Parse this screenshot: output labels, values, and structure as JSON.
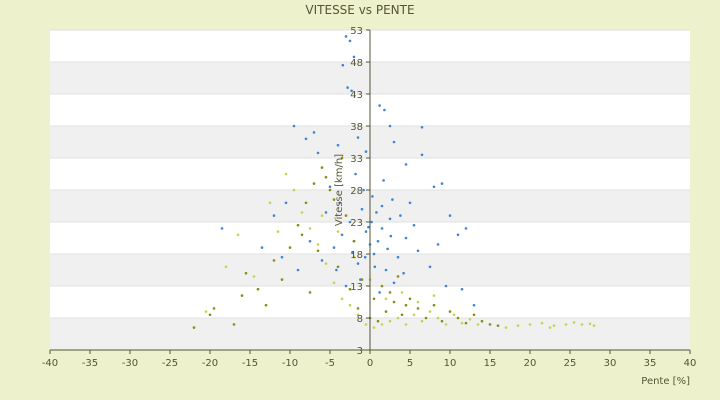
{
  "chart_data": {
    "type": "scatter",
    "title": "VITESSE vs PENTE",
    "xlabel": "Pente [%]",
    "ylabel": "Vitesse [km/h]",
    "xlim": [
      -40,
      40
    ],
    "ylim": [
      3,
      53
    ],
    "x_ticks": [
      "-40",
      "-35",
      "-30",
      "-25",
      "-20",
      "-15",
      "-10",
      "-5",
      "0",
      "5",
      "10",
      "15",
      "20",
      "25",
      "30",
      "35",
      "40"
    ],
    "y_ticks": [
      "3",
      "8",
      "13",
      "18",
      "23",
      "28",
      "33",
      "38",
      "43",
      "48",
      "53"
    ],
    "grid": true,
    "series": [
      {
        "name": "",
        "color": "#3a86d4",
        "points": [
          [
            -3.0,
            52.0
          ],
          [
            -2.5,
            51.3
          ],
          [
            -2.0,
            48.8
          ],
          [
            -3.4,
            47.5
          ],
          [
            -2.8,
            44.0
          ],
          [
            -2.3,
            43.5
          ],
          [
            1.2,
            41.2
          ],
          [
            1.8,
            40.5
          ],
          [
            2.5,
            38.0
          ],
          [
            -9.5,
            38.0
          ],
          [
            -7.0,
            37.0
          ],
          [
            -8.0,
            36.0
          ],
          [
            6.5,
            37.8
          ],
          [
            -1.5,
            36.2
          ],
          [
            -4.0,
            35.0
          ],
          [
            3.0,
            35.5
          ],
          [
            -6.5,
            33.8
          ],
          [
            6.5,
            33.5
          ],
          [
            -0.5,
            34.0
          ],
          [
            4.5,
            32.0
          ],
          [
            9.0,
            29.0
          ],
          [
            8.0,
            28.5
          ],
          [
            -12.0,
            24.0
          ],
          [
            -18.5,
            22.0
          ],
          [
            -10.5,
            26.0
          ],
          [
            12.0,
            22.0
          ],
          [
            11.0,
            21.0
          ],
          [
            10.0,
            24.0
          ],
          [
            -9.0,
            15.5
          ],
          [
            -2.0,
            20.0
          ],
          [
            0.5,
            18.0
          ],
          [
            1.5,
            22.0
          ],
          [
            -1.0,
            25.0
          ],
          [
            2.5,
            23.5
          ],
          [
            -3.5,
            21.0
          ],
          [
            0.0,
            19.5
          ],
          [
            3.5,
            17.5
          ],
          [
            -1.5,
            16.5
          ],
          [
            2.0,
            15.5
          ],
          [
            0.8,
            24.5
          ],
          [
            -0.5,
            21.5
          ],
          [
            1.0,
            20.0
          ],
          [
            -2.5,
            23.0
          ],
          [
            4.5,
            20.5
          ],
          [
            -4.5,
            19.0
          ],
          [
            2.8,
            26.5
          ],
          [
            -0.8,
            28.0
          ],
          [
            0.3,
            27.0
          ],
          [
            1.7,
            29.5
          ],
          [
            -1.8,
            30.5
          ],
          [
            5.5,
            22.5
          ],
          [
            -5.5,
            24.5
          ],
          [
            6.0,
            18.5
          ],
          [
            -6.0,
            17.0
          ],
          [
            3.0,
            13.5
          ],
          [
            -3.0,
            13.0
          ],
          [
            7.5,
            16.0
          ],
          [
            -7.5,
            20.0
          ],
          [
            1.2,
            12.0
          ],
          [
            -1.2,
            14.0
          ],
          [
            0.6,
            16.0
          ],
          [
            2.2,
            18.8
          ],
          [
            -2.2,
            18.2
          ],
          [
            3.8,
            24.0
          ],
          [
            -3.8,
            26.0
          ],
          [
            0.2,
            23.0
          ],
          [
            1.5,
            25.5
          ],
          [
            -0.6,
            17.5
          ],
          [
            4.2,
            15.0
          ],
          [
            -4.2,
            15.5
          ],
          [
            8.5,
            19.5
          ],
          [
            5.0,
            26.0
          ],
          [
            -5.0,
            28.5
          ],
          [
            2.6,
            20.8
          ],
          [
            -0.2,
            22.2
          ],
          [
            11.5,
            12.5
          ],
          [
            13.0,
            10.0
          ],
          [
            -11.0,
            17.5
          ],
          [
            -13.5,
            19.0
          ],
          [
            9.5,
            13.0
          ]
        ]
      },
      {
        "name": "",
        "color": "#8a8a14",
        "points": [
          [
            -22.0,
            6.5
          ],
          [
            -20.0,
            8.5
          ],
          [
            -19.5,
            9.5
          ],
          [
            -17.0,
            7.0
          ],
          [
            -16.0,
            11.5
          ],
          [
            -15.5,
            15.0
          ],
          [
            -14.0,
            12.5
          ],
          [
            -13.0,
            10.0
          ],
          [
            -12.0,
            17.0
          ],
          [
            -11.0,
            14.0
          ],
          [
            -10.0,
            19.0
          ],
          [
            -9.0,
            22.5
          ],
          [
            -8.0,
            26.0
          ],
          [
            -7.0,
            29.0
          ],
          [
            -6.0,
            31.5
          ],
          [
            -5.0,
            28.0
          ],
          [
            -4.5,
            26.5
          ],
          [
            -3.0,
            24.0
          ],
          [
            -2.0,
            20.0
          ],
          [
            -1.0,
            14.0
          ],
          [
            0.0,
            8.0
          ],
          [
            1.0,
            7.5
          ],
          [
            2.0,
            9.0
          ],
          [
            3.0,
            10.5
          ],
          [
            4.0,
            8.5
          ],
          [
            5.0,
            11.0
          ],
          [
            6.0,
            9.5
          ],
          [
            7.0,
            8.0
          ],
          [
            8.0,
            10.0
          ],
          [
            9.0,
            7.5
          ],
          [
            10.0,
            9.0
          ],
          [
            11.0,
            8.0
          ],
          [
            12.0,
            7.2
          ],
          [
            13.0,
            8.5
          ],
          [
            14.0,
            7.5
          ],
          [
            15.0,
            7.0
          ],
          [
            16.0,
            6.8
          ],
          [
            -3.5,
            33.0
          ],
          [
            -5.5,
            30.0
          ],
          [
            -8.5,
            21.0
          ],
          [
            -6.5,
            18.5
          ],
          [
            -2.5,
            12.5
          ],
          [
            -1.5,
            9.5
          ],
          [
            0.5,
            11.0
          ],
          [
            1.5,
            13.0
          ],
          [
            2.5,
            12.0
          ],
          [
            3.5,
            14.5
          ],
          [
            4.5,
            10.0
          ],
          [
            -4.0,
            16.0
          ],
          [
            -7.5,
            12.0
          ]
        ]
      },
      {
        "name": "",
        "color": "#c8d04c",
        "points": [
          [
            -10.5,
            30.5
          ],
          [
            -9.5,
            28.0
          ],
          [
            -8.5,
            24.5
          ],
          [
            -7.5,
            22.0
          ],
          [
            -6.5,
            19.5
          ],
          [
            -5.5,
            16.5
          ],
          [
            -4.5,
            13.5
          ],
          [
            -3.5,
            11.0
          ],
          [
            -2.5,
            10.0
          ],
          [
            -1.5,
            8.5
          ],
          [
            -0.5,
            7.0
          ],
          [
            0.5,
            6.5
          ],
          [
            1.5,
            7.0
          ],
          [
            2.5,
            7.5
          ],
          [
            3.5,
            8.0
          ],
          [
            4.5,
            7.0
          ],
          [
            5.5,
            8.5
          ],
          [
            6.5,
            7.5
          ],
          [
            7.5,
            9.0
          ],
          [
            8.5,
            8.0
          ],
          [
            9.5,
            7.0
          ],
          [
            10.5,
            8.5
          ],
          [
            11.5,
            7.2
          ],
          [
            12.5,
            7.8
          ],
          [
            13.5,
            7.0
          ],
          [
            17.0,
            6.5
          ],
          [
            18.5,
            6.8
          ],
          [
            20.0,
            7.0
          ],
          [
            21.5,
            7.2
          ],
          [
            23.0,
            6.8
          ],
          [
            24.5,
            7.0
          ],
          [
            25.5,
            7.3
          ],
          [
            26.5,
            7.0
          ],
          [
            27.5,
            7.1
          ],
          [
            28.0,
            6.8
          ],
          [
            22.5,
            6.5
          ],
          [
            -14.5,
            14.5
          ],
          [
            -16.5,
            21.0
          ],
          [
            -18.0,
            16.0
          ],
          [
            -20.5,
            9.0
          ],
          [
            -11.5,
            21.5
          ],
          [
            -12.5,
            26.0
          ],
          [
            -6.0,
            24.0
          ],
          [
            -4.0,
            21.5
          ],
          [
            -2.0,
            17.5
          ],
          [
            0.0,
            14.0
          ],
          [
            2.0,
            11.0
          ],
          [
            4.0,
            12.0
          ],
          [
            6.0,
            10.5
          ],
          [
            8.0,
            11.5
          ]
        ]
      }
    ]
  }
}
